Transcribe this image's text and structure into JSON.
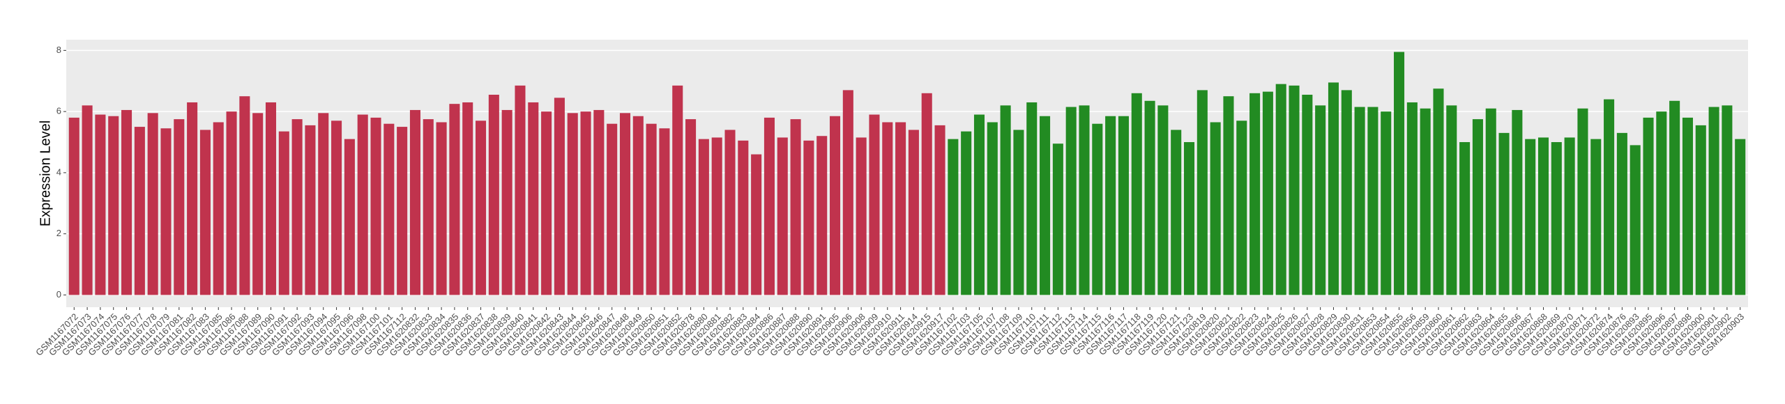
{
  "chart_data": {
    "type": "bar",
    "y_label": "Expression Level",
    "categories": [
      "GSM1167072",
      "GSM1167073",
      "GSM1167074",
      "GSM1167075",
      "GSM1167076",
      "GSM1167077",
      "GSM1167078",
      "GSM1167079",
      "GSM1167081",
      "GSM1167082",
      "GSM1167083",
      "GSM1167085",
      "GSM1167086",
      "GSM1167088",
      "GSM1167089",
      "GSM1167090",
      "GSM1167091",
      "GSM1167092",
      "GSM1167093",
      "GSM1167094",
      "GSM1167095",
      "GSM1167096",
      "GSM1167098",
      "GSM1167100",
      "GSM1167101",
      "GSM1167112",
      "GSM1620832",
      "GSM1620833",
      "GSM1620834",
      "GSM1620835",
      "GSM1620836",
      "GSM1620837",
      "GSM1620838",
      "GSM1620839",
      "GSM1620840",
      "GSM1620841",
      "GSM1620842",
      "GSM1620843",
      "GSM1620844",
      "GSM1620845",
      "GSM1620846",
      "GSM1620847",
      "GSM1620848",
      "GSM1620849",
      "GSM1620850",
      "GSM1620851",
      "GSM1620852",
      "GSM1620878",
      "GSM1620880",
      "GSM1620881",
      "GSM1620882",
      "GSM1620883",
      "GSM1620884",
      "GSM1620886",
      "GSM1620887",
      "GSM1620888",
      "GSM1620890",
      "GSM1620891",
      "GSM1620905",
      "GSM1620906",
      "GSM1620908",
      "GSM1620909",
      "GSM1620910",
      "GSM1620911",
      "GSM1620914",
      "GSM1620915",
      "GSM1620917",
      "GSM1167102",
      "GSM1167103",
      "GSM1167105",
      "GSM1167107",
      "GSM1167108",
      "GSM1167109",
      "GSM1167110",
      "GSM1167111",
      "GSM1167112",
      "GSM1167113",
      "GSM1167114",
      "GSM1167115",
      "GSM1167116",
      "GSM1167117",
      "GSM1167118",
      "GSM1167119",
      "GSM1167120",
      "GSM1167121",
      "GSM1167123",
      "GSM1620819",
      "GSM1620820",
      "GSM1620821",
      "GSM1620822",
      "GSM1620823",
      "GSM1620824",
      "GSM1620825",
      "GSM1620826",
      "GSM1620827",
      "GSM1620828",
      "GSM1620829",
      "GSM1620830",
      "GSM1620831",
      "GSM1620853",
      "GSM1620854",
      "GSM1620855",
      "GSM1620856",
      "GSM1620859",
      "GSM1620860",
      "GSM1620861",
      "GSM1620862",
      "GSM1620863",
      "GSM1620864",
      "GSM1620865",
      "GSM1620866",
      "GSM1620867",
      "GSM1620868",
      "GSM1620869",
      "GSM1620870",
      "GSM1620871",
      "GSM1620872",
      "GSM1620874",
      "GSM1620876",
      "GSM1620893",
      "GSM1620895",
      "GSM1620896",
      "GSM1620897",
      "GSM1620898",
      "GSM1620900",
      "GSM1620901",
      "GSM1620902",
      "GSM1620903"
    ],
    "values": [
      5.8,
      6.2,
      5.9,
      5.85,
      6.05,
      5.5,
      5.95,
      5.45,
      5.75,
      6.3,
      5.4,
      5.65,
      6.0,
      6.5,
      5.95,
      6.3,
      5.35,
      5.75,
      5.55,
      5.95,
      5.7,
      5.1,
      5.9,
      5.8,
      5.6,
      5.5,
      6.05,
      5.75,
      5.65,
      6.25,
      6.3,
      5.7,
      6.55,
      6.05,
      6.85,
      6.3,
      6.0,
      6.45,
      5.95,
      6.0,
      6.05,
      5.6,
      5.95,
      5.85,
      5.6,
      5.45,
      6.85,
      5.75,
      5.1,
      5.15,
      5.4,
      5.05,
      4.6,
      5.8,
      5.15,
      5.75,
      5.05,
      5.2,
      5.85,
      6.7,
      5.15,
      5.9,
      5.65,
      5.65,
      5.4,
      6.6,
      5.55,
      5.1,
      5.35,
      5.9,
      5.65,
      6.2,
      5.4,
      6.3,
      5.85,
      4.95,
      6.15,
      6.2,
      5.6,
      5.85,
      5.85,
      6.6,
      6.35,
      6.2,
      5.4,
      5.0,
      6.7,
      5.65,
      6.5,
      5.7,
      6.6,
      6.65,
      6.9,
      6.85,
      6.55,
      6.2,
      6.95,
      6.7,
      6.15,
      6.15,
      6.0,
      7.95,
      6.3,
      6.1,
      6.75,
      6.2,
      5.0,
      5.75,
      6.1,
      5.3,
      6.05,
      5.1,
      5.15,
      5.0,
      5.15,
      6.1,
      5.1,
      6.4,
      5.3,
      4.9,
      5.8,
      6.0,
      6.35,
      5.8,
      5.55,
      6.15,
      6.2,
      5.1
    ],
    "colors": [
      "#c0334d",
      "#c0334d",
      "#c0334d",
      "#c0334d",
      "#c0334d",
      "#c0334d",
      "#c0334d",
      "#c0334d",
      "#c0334d",
      "#c0334d",
      "#c0334d",
      "#c0334d",
      "#c0334d",
      "#c0334d",
      "#c0334d",
      "#c0334d",
      "#c0334d",
      "#c0334d",
      "#c0334d",
      "#c0334d",
      "#c0334d",
      "#c0334d",
      "#c0334d",
      "#c0334d",
      "#c0334d",
      "#c0334d",
      "#c0334d",
      "#c0334d",
      "#c0334d",
      "#c0334d",
      "#c0334d",
      "#c0334d",
      "#c0334d",
      "#c0334d",
      "#c0334d",
      "#c0334d",
      "#c0334d",
      "#c0334d",
      "#c0334d",
      "#c0334d",
      "#c0334d",
      "#c0334d",
      "#c0334d",
      "#c0334d",
      "#c0334d",
      "#c0334d",
      "#c0334d",
      "#c0334d",
      "#c0334d",
      "#c0334d",
      "#c0334d",
      "#c0334d",
      "#c0334d",
      "#c0334d",
      "#c0334d",
      "#c0334d",
      "#c0334d",
      "#c0334d",
      "#c0334d",
      "#c0334d",
      "#c0334d",
      "#c0334d",
      "#c0334d",
      "#c0334d",
      "#c0334d",
      "#c0334d",
      "#c0334d",
      "#228b22",
      "#228b22",
      "#228b22",
      "#228b22",
      "#228b22",
      "#228b22",
      "#228b22",
      "#228b22",
      "#228b22",
      "#228b22",
      "#228b22",
      "#228b22",
      "#228b22",
      "#228b22",
      "#228b22",
      "#228b22",
      "#228b22",
      "#228b22",
      "#228b22",
      "#228b22",
      "#228b22",
      "#228b22",
      "#228b22",
      "#228b22",
      "#228b22",
      "#228b22",
      "#228b22",
      "#228b22",
      "#228b22",
      "#228b22",
      "#228b22",
      "#228b22",
      "#228b22",
      "#228b22",
      "#228b22",
      "#228b22",
      "#228b22",
      "#228b22",
      "#228b22",
      "#228b22",
      "#228b22",
      "#228b22",
      "#228b22",
      "#228b22",
      "#228b22",
      "#228b22",
      "#228b22",
      "#228b22",
      "#228b22",
      "#228b22",
      "#228b22",
      "#228b22",
      "#228b22",
      "#228b22",
      "#228b22",
      "#228b22",
      "#228b22",
      "#228b22",
      "#228b22",
      "#228b22",
      "#228b22"
    ],
    "ylim": [
      -0.4,
      8.35
    ],
    "yticks": [
      0,
      2,
      4,
      6,
      8
    ],
    "grid": true
  }
}
